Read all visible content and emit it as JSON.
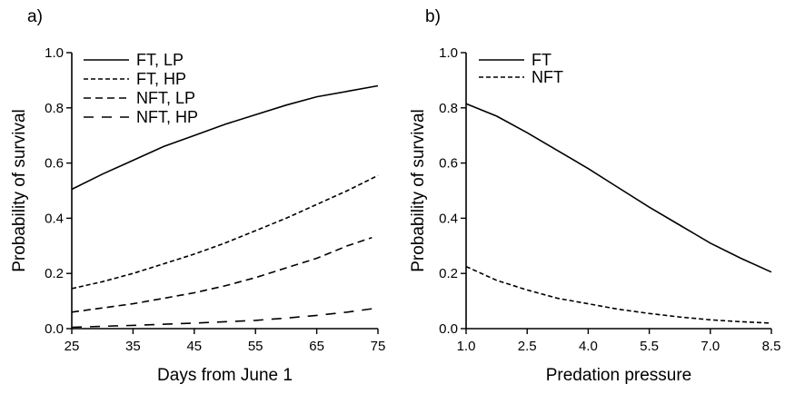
{
  "chart_data": [
    {
      "type": "line",
      "panel_label": "a)",
      "xlabel": "Days from June 1",
      "ylabel": "Probability of survival",
      "xlim": [
        25,
        75
      ],
      "ylim": [
        0,
        1
      ],
      "x_ticks": [
        "25",
        "35",
        "45",
        "55",
        "65",
        "75"
      ],
      "y_ticks": [
        "0.0",
        "0.2",
        "0.4",
        "0.6",
        "0.8",
        "1.0"
      ],
      "legend_position": "top-left",
      "series": [
        {
          "name": "FT, LP",
          "dash": "solid",
          "x": [
            25,
            30,
            35,
            40,
            45,
            50,
            55,
            60,
            65,
            70,
            75
          ],
          "y": [
            0.505,
            0.56,
            0.61,
            0.66,
            0.7,
            0.74,
            0.775,
            0.81,
            0.84,
            0.86,
            0.88
          ]
        },
        {
          "name": "FT, HP",
          "dash": "short",
          "x": [
            25,
            30,
            35,
            40,
            45,
            50,
            55,
            60,
            65,
            70,
            75
          ],
          "y": [
            0.145,
            0.17,
            0.2,
            0.235,
            0.27,
            0.31,
            0.355,
            0.4,
            0.45,
            0.5,
            0.555
          ]
        },
        {
          "name": "NFT, LP",
          "dash": "medium",
          "x": [
            25,
            30,
            35,
            40,
            45,
            50,
            55,
            60,
            65,
            70,
            74
          ],
          "y": [
            0.06,
            0.075,
            0.09,
            0.11,
            0.13,
            0.155,
            0.185,
            0.22,
            0.255,
            0.3,
            0.33
          ]
        },
        {
          "name": "NFT, HP",
          "dash": "long",
          "x": [
            25,
            35,
            45,
            55,
            60,
            65,
            70,
            75
          ],
          "y": [
            0.005,
            0.012,
            0.02,
            0.03,
            0.038,
            0.048,
            0.06,
            0.075
          ]
        }
      ]
    },
    {
      "type": "line",
      "panel_label": "b)",
      "xlabel": "Predation pressure",
      "ylabel": "Probability of survival",
      "xlim": [
        1.0,
        8.5
      ],
      "ylim": [
        0,
        1
      ],
      "x_ticks": [
        "1.0",
        "2.5",
        "4.0",
        "5.5",
        "7.0",
        "8.5"
      ],
      "y_ticks": [
        "0.0",
        "0.2",
        "0.4",
        "0.6",
        "0.8",
        "1.0"
      ],
      "legend_position": "top-left",
      "series": [
        {
          "name": "FT",
          "dash": "solid",
          "x": [
            1.0,
            1.75,
            2.5,
            3.25,
            4.0,
            4.75,
            5.5,
            6.25,
            7.0,
            7.75,
            8.5
          ],
          "y": [
            0.815,
            0.77,
            0.71,
            0.645,
            0.58,
            0.51,
            0.44,
            0.375,
            0.31,
            0.255,
            0.205
          ]
        },
        {
          "name": "NFT",
          "dash": "short",
          "x": [
            1.0,
            1.75,
            2.5,
            3.25,
            4.0,
            4.75,
            5.5,
            6.25,
            7.0,
            7.75,
            8.5
          ],
          "y": [
            0.225,
            0.175,
            0.14,
            0.11,
            0.09,
            0.07,
            0.055,
            0.042,
            0.032,
            0.025,
            0.02
          ]
        }
      ]
    }
  ]
}
